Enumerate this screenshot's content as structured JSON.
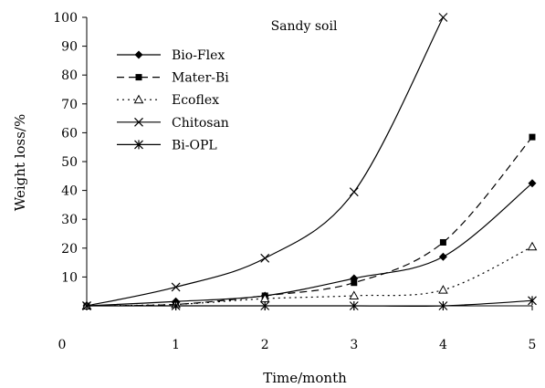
{
  "chart_data": {
    "type": "line",
    "title": "Sandy soil",
    "xlabel": "Time/month",
    "ylabel": "Weight loss/%",
    "xlim": [
      0,
      5
    ],
    "ylim": [
      0,
      100
    ],
    "yticks": [
      10,
      20,
      30,
      40,
      50,
      60,
      70,
      80,
      90,
      100
    ],
    "xticks": [
      0,
      1,
      2,
      3,
      4,
      5
    ],
    "x_tick_labels": [
      "0",
      "1",
      "2",
      "3",
      "4",
      "5"
    ],
    "y_tick_labels": [
      "10",
      "20",
      "30",
      "40",
      "50",
      "60",
      "70",
      "80",
      "90",
      "100"
    ],
    "grid": false,
    "legend_position": "top-left",
    "series": [
      {
        "name": "Bio-Flex",
        "marker": "diamond",
        "dash": "solid",
        "x": [
          0,
          1,
          2,
          3,
          4,
          5
        ],
        "y": [
          0,
          1.5,
          3.5,
          9.5,
          17,
          42.5
        ]
      },
      {
        "name": "Mater-Bi",
        "marker": "square",
        "dash": "dashed",
        "x": [
          0,
          1,
          2,
          3,
          4,
          5
        ],
        "y": [
          0,
          0.5,
          3.5,
          8,
          22,
          58.5
        ]
      },
      {
        "name": "Ecoflex",
        "marker": "triangle",
        "dash": "dotted",
        "x": [
          0,
          1,
          2,
          3,
          4,
          5
        ],
        "y": [
          0,
          0.5,
          2.5,
          3.5,
          5.5,
          20.5
        ]
      },
      {
        "name": "Chitosan",
        "marker": "x",
        "dash": "solid",
        "x": [
          0,
          1,
          2,
          3,
          4
        ],
        "y": [
          0,
          6.5,
          16.5,
          39.5,
          100
        ]
      },
      {
        "name": "Bi-OPL",
        "marker": "asterisk",
        "dash": "solid",
        "x": [
          0,
          1,
          2,
          3,
          4,
          5
        ],
        "y": [
          0,
          0,
          0,
          0,
          0,
          1.8
        ]
      }
    ]
  }
}
